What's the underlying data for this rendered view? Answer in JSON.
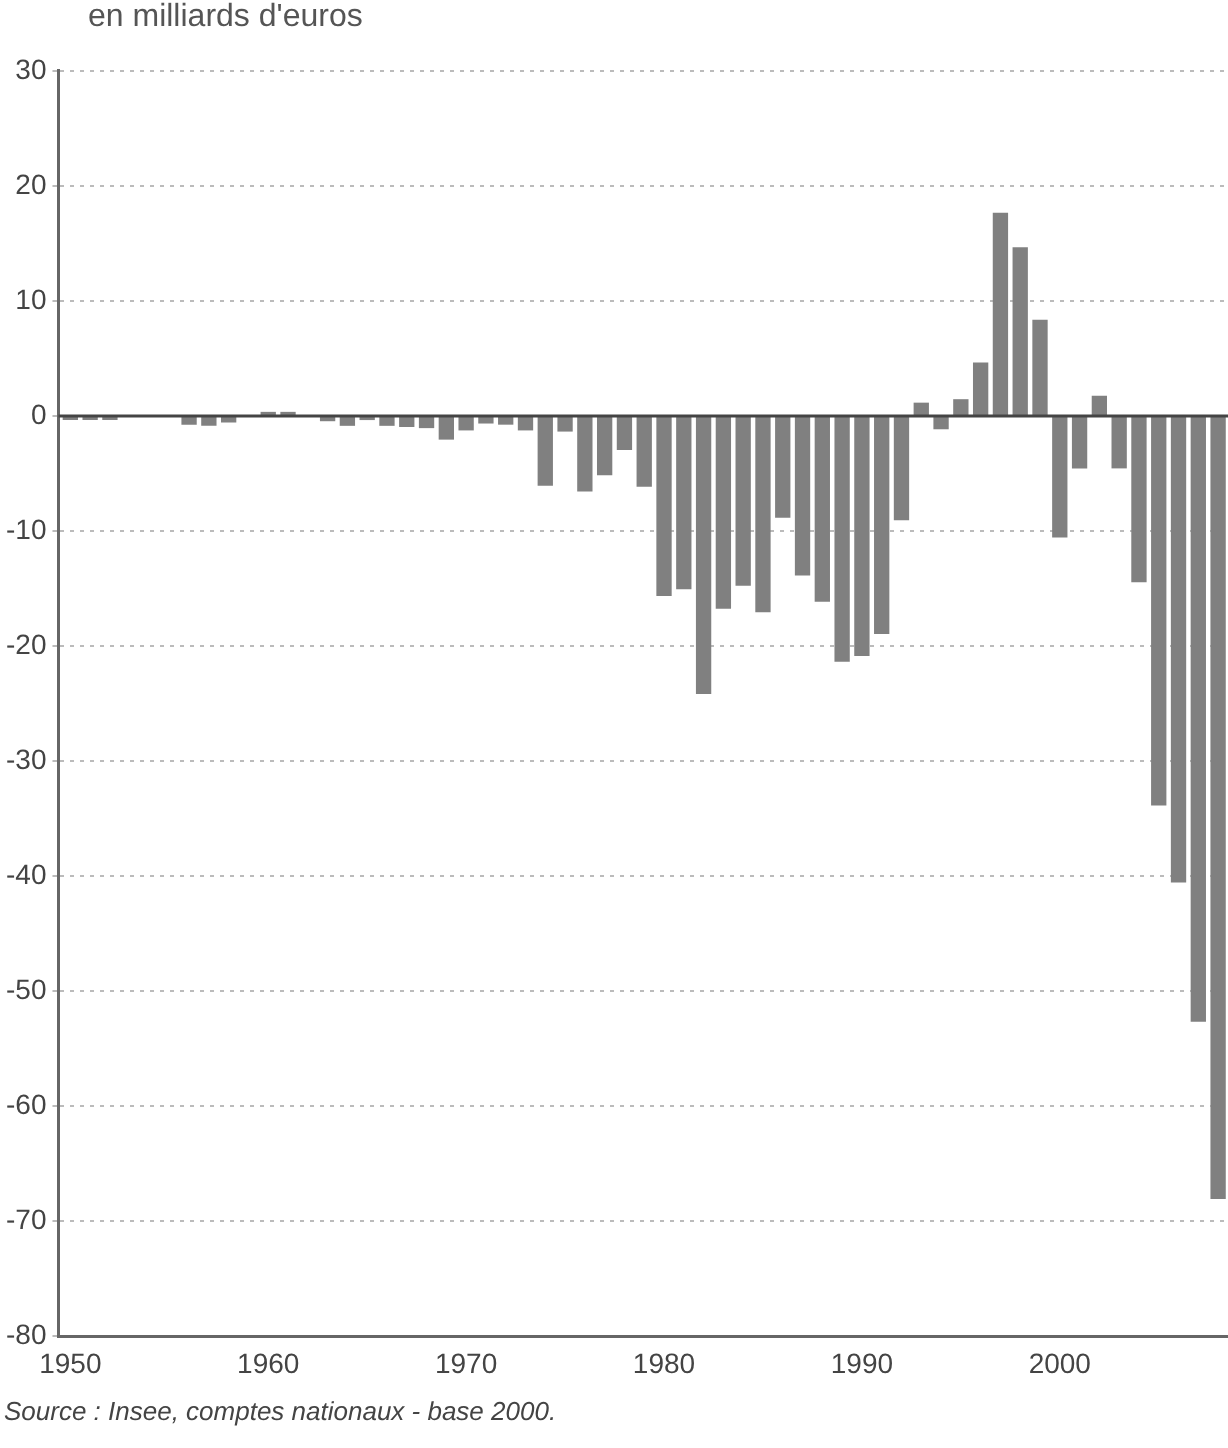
{
  "chart_data": {
    "type": "bar",
    "ylabel": "en milliards d'euros",
    "annotations": [
      "Source : Insee, comptes nationaux - base 2000."
    ],
    "x": [
      1950,
      1951,
      1952,
      1953,
      1954,
      1955,
      1956,
      1957,
      1958,
      1959,
      1960,
      1961,
      1962,
      1963,
      1964,
      1965,
      1966,
      1967,
      1968,
      1969,
      1970,
      1971,
      1972,
      1973,
      1974,
      1975,
      1976,
      1977,
      1978,
      1979,
      1980,
      1981,
      1982,
      1983,
      1984,
      1985,
      1986,
      1987,
      1988,
      1989,
      1990,
      1991,
      1992,
      1993,
      1994,
      1995,
      1996,
      1997,
      1998,
      1999,
      2000,
      2001,
      2002,
      2003,
      2004,
      2005,
      2006,
      2007,
      2008
    ],
    "values": [
      -0.3,
      -0.3,
      -0.3,
      null,
      null,
      null,
      -0.7,
      -0.8,
      -0.5,
      null,
      0.3,
      0.3,
      0,
      -0.4,
      -0.8,
      -0.3,
      -0.8,
      -0.9,
      -1.0,
      -2.0,
      -1.2,
      -0.6,
      -0.7,
      -1.2,
      -6.0,
      -1.3,
      -6.5,
      -5.1,
      -2.9,
      -6.1,
      -15.6,
      -15.0,
      -24.1,
      -16.7,
      -14.7,
      -17.0,
      -8.8,
      -13.8,
      -16.1,
      -21.3,
      -20.8,
      -18.9,
      -9.0,
      1.1,
      -1.1,
      1.4,
      4.6,
      17.6,
      14.6,
      8.3,
      -10.5,
      -4.5,
      1.7,
      -4.5,
      -14.4,
      -33.8,
      -40.5,
      -52.6,
      -68.0
    ],
    "color": "#808080",
    "xlim": [
      1949.4,
      2008.5
    ],
    "xticks": [
      1950,
      1960,
      1970,
      1980,
      1990,
      2000
    ],
    "ylim": [
      -80,
      30
    ],
    "yticks": [
      -80,
      -70,
      -60,
      -50,
      -40,
      -30,
      -20,
      -10,
      0,
      10,
      20,
      30
    ],
    "grid": "y",
    "ref_lines": [
      {
        "axis": "y",
        "value": 0,
        "color": "#444444"
      }
    ],
    "legend": false
  }
}
